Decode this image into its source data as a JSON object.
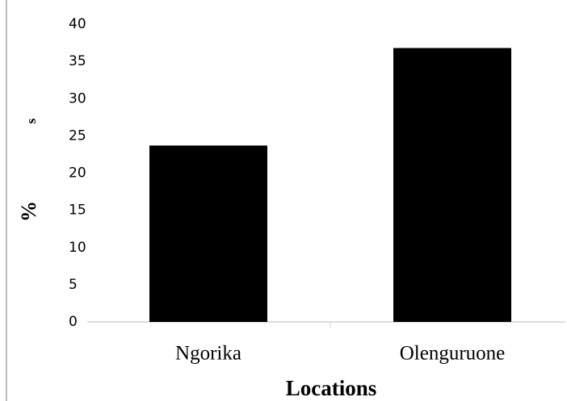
{
  "chart_data": {
    "type": "bar",
    "x_label": "Locations",
    "y_label": "%",
    "annotations": [
      "s"
    ],
    "categories": [
      "Ngorika",
      "Olenguruone"
    ],
    "values": [
      23.7,
      36.8
    ],
    "color": "#000000",
    "ylim": [
      0,
      40
    ],
    "yticks": [
      0,
      5,
      10,
      15,
      20,
      25,
      30,
      35,
      40
    ],
    "grid": false
  }
}
